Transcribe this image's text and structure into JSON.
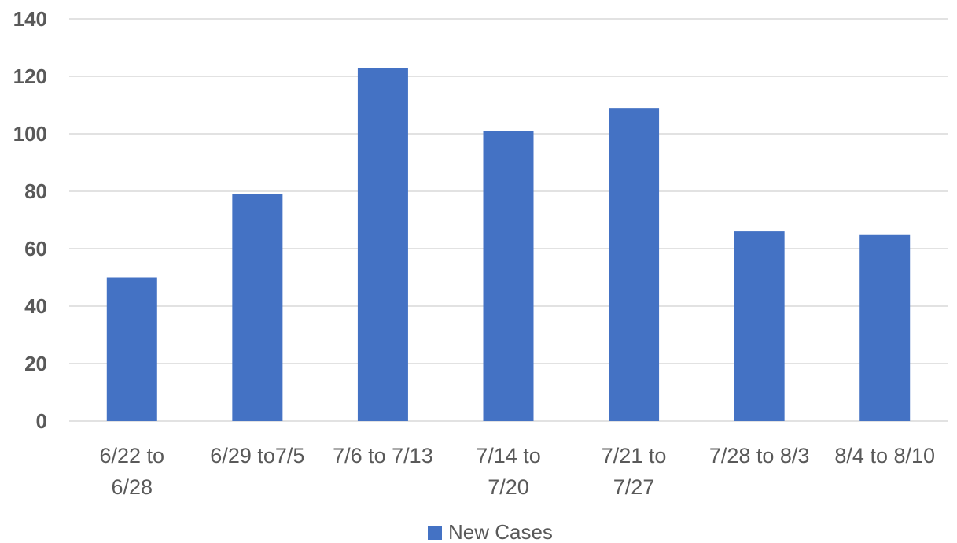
{
  "chart_data": {
    "type": "bar",
    "categories": [
      "6/22 to 6/28",
      "6/29 to7/5",
      "7/6 to 7/13",
      "7/14 to 7/20",
      "7/21 to 7/27",
      "7/28 to 8/3",
      "8/4 to 8/10"
    ],
    "category_lines": [
      [
        "6/22 to",
        "6/28"
      ],
      [
        "6/29 to7/5"
      ],
      [
        "7/6 to 7/13"
      ],
      [
        "7/14 to",
        "7/20"
      ],
      [
        "7/21 to",
        "7/27"
      ],
      [
        "7/28 to 8/3"
      ],
      [
        "8/4 to 8/10"
      ]
    ],
    "series": [
      {
        "name": "New Cases",
        "values": [
          50,
          79,
          123,
          101,
          109,
          66,
          65
        ],
        "color": "#4472C4"
      }
    ],
    "ylim": [
      0,
      140
    ],
    "yticks": [
      0,
      20,
      40,
      60,
      80,
      100,
      120,
      140
    ],
    "grid": true,
    "legend": "bottom-center"
  }
}
